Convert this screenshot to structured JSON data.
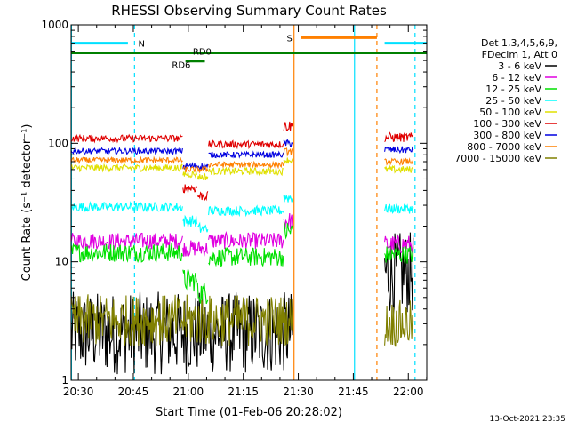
{
  "chart_data": {
    "type": "line",
    "title": "RHESSI Observing Summary Count Rates",
    "xlabel": "Start Time (01-Feb-06 20:28:02)",
    "ylabel_html": "Count Rate (s⁻¹ detector⁻¹)",
    "y_scale": "log",
    "ylim": [
      1,
      1000
    ],
    "xlim_minutes": [
      0,
      97
    ],
    "x_start_label": "20:28:02",
    "x_ticks": [
      {
        "label": "20:30",
        "t": 1.97
      },
      {
        "label": "20:45",
        "t": 16.97
      },
      {
        "label": "21:00",
        "t": 31.97
      },
      {
        "label": "21:15",
        "t": 46.97
      },
      {
        "label": "21:30",
        "t": 61.97
      },
      {
        "label": "21:45",
        "t": 76.97
      },
      {
        "label": "22:00",
        "t": 91.97
      }
    ],
    "y_ticks": [
      {
        "label": "1",
        "v": 1
      },
      {
        "label": "10",
        "v": 10
      },
      {
        "label": "100",
        "v": 100
      },
      {
        "label": "1000",
        "v": 1000
      }
    ],
    "legend_header": [
      "Det 1,3,4,5,6,9,",
      "FDecim 1, Att 0"
    ],
    "legend_position": "right",
    "series": [
      {
        "name": "3 - 6 keV",
        "color": "#000000",
        "segments": [
          {
            "t0": 0,
            "t1": 60.5,
            "level": 2.5,
            "noise": 0.35
          },
          {
            "t0": 85.5,
            "t1": 93.5,
            "level": 8.0,
            "noise": 0.35
          }
        ]
      },
      {
        "name": "6 - 12 keV",
        "color": "#e000e0",
        "segments": [
          {
            "t0": 0,
            "t1": 30.5,
            "level": 15,
            "noise": 0.07
          },
          {
            "t0": 30.5,
            "t1": 37.5,
            "level": 13,
            "noise": 0.07
          },
          {
            "t0": 37.5,
            "t1": 58,
            "level": 15,
            "noise": 0.07
          },
          {
            "t0": 58,
            "t1": 60.5,
            "level": 22,
            "noise": 0.08
          },
          {
            "t0": 85.5,
            "t1": 93.5,
            "level": 14,
            "noise": 0.08
          }
        ]
      },
      {
        "name": "12 - 25 keV",
        "color": "#00e000",
        "segments": [
          {
            "t0": 0,
            "t1": 30.5,
            "level": 12,
            "noise": 0.08
          },
          {
            "t0": 30.5,
            "t1": 34.5,
            "level": 7,
            "noise": 0.1
          },
          {
            "t0": 34.5,
            "t1": 37.5,
            "level": 5.5,
            "noise": 0.1
          },
          {
            "t0": 37.5,
            "t1": 58,
            "level": 11,
            "noise": 0.08
          },
          {
            "t0": 58,
            "t1": 60.5,
            "level": 18,
            "noise": 0.1
          },
          {
            "t0": 85.5,
            "t1": 93.5,
            "level": 11.5,
            "noise": 0.08
          }
        ]
      },
      {
        "name": "25 - 50 keV",
        "color": "#00ffff",
        "segments": [
          {
            "t0": 0,
            "t1": 30.5,
            "level": 29,
            "noise": 0.04
          },
          {
            "t0": 30.5,
            "t1": 34.5,
            "level": 22,
            "noise": 0.05
          },
          {
            "t0": 34.5,
            "t1": 37.5,
            "level": 19,
            "noise": 0.05
          },
          {
            "t0": 37.5,
            "t1": 58,
            "level": 27,
            "noise": 0.04
          },
          {
            "t0": 58,
            "t1": 60.5,
            "level": 35,
            "noise": 0.05
          },
          {
            "t0": 85.5,
            "t1": 93.5,
            "level": 28,
            "noise": 0.04
          }
        ]
      },
      {
        "name": "50 - 100 keV",
        "color": "#e0e000",
        "segments": [
          {
            "t0": 0,
            "t1": 30.5,
            "level": 62,
            "noise": 0.03
          },
          {
            "t0": 30.5,
            "t1": 34.5,
            "level": 55,
            "noise": 0.03
          },
          {
            "t0": 34.5,
            "t1": 37.5,
            "level": 52,
            "noise": 0.03
          },
          {
            "t0": 37.5,
            "t1": 58,
            "level": 58,
            "noise": 0.03
          },
          {
            "t0": 58,
            "t1": 60.5,
            "level": 72,
            "noise": 0.03
          },
          {
            "t0": 85.5,
            "t1": 93.5,
            "level": 60,
            "noise": 0.03
          }
        ]
      },
      {
        "name": "100 - 300 keV",
        "color": "#e00000",
        "segments": [
          {
            "t0": 0,
            "t1": 30.5,
            "level": 110,
            "noise": 0.03
          },
          {
            "t0": 30.5,
            "t1": 34.5,
            "level": 42,
            "noise": 0.04
          },
          {
            "t0": 34.5,
            "t1": 37.5,
            "level": 36,
            "noise": 0.04
          },
          {
            "t0": 37.5,
            "t1": 58,
            "level": 98,
            "noise": 0.03
          },
          {
            "t0": 58,
            "t1": 60.5,
            "level": 140,
            "noise": 0.05
          },
          {
            "t0": 85.5,
            "t1": 93.5,
            "level": 112,
            "noise": 0.04
          }
        ]
      },
      {
        "name": "300 - 800 keV",
        "color": "#0000e0",
        "segments": [
          {
            "t0": 0,
            "t1": 30.5,
            "level": 86,
            "noise": 0.025
          },
          {
            "t0": 30.5,
            "t1": 37.5,
            "level": 64,
            "noise": 0.03
          },
          {
            "t0": 37.5,
            "t1": 58,
            "level": 80,
            "noise": 0.025
          },
          {
            "t0": 58,
            "t1": 60.5,
            "level": 100,
            "noise": 0.03
          },
          {
            "t0": 85.5,
            "t1": 93.5,
            "level": 88,
            "noise": 0.03
          }
        ]
      },
      {
        "name": "800 - 7000 keV",
        "color": "#ff8000",
        "segments": [
          {
            "t0": 0,
            "t1": 30.5,
            "level": 72,
            "noise": 0.025
          },
          {
            "t0": 30.5,
            "t1": 37.5,
            "level": 60,
            "noise": 0.025
          },
          {
            "t0": 37.5,
            "t1": 58,
            "level": 66,
            "noise": 0.025
          },
          {
            "t0": 58,
            "t1": 60.5,
            "level": 85,
            "noise": 0.03
          },
          {
            "t0": 85.5,
            "t1": 93.5,
            "level": 70,
            "noise": 0.025
          }
        ]
      },
      {
        "name": "7000 - 15000 keV",
        "color": "#808000",
        "segments": [
          {
            "t0": 0,
            "t1": 60.5,
            "level": 3.2,
            "noise": 0.22
          },
          {
            "t0": 85.5,
            "t1": 93.5,
            "level": 3.0,
            "noise": 0.2
          }
        ]
      }
    ],
    "markers": [
      {
        "label": "N",
        "color": "#00e0ff",
        "y_value": 700,
        "t0": 0,
        "t1": 17.3,
        "line_t0": 0,
        "line_t1": 15.5,
        "label_t": 18.3,
        "label_y_value": 700
      },
      {
        "label": "",
        "color": "#00e0ff",
        "y_value": 700,
        "t0": 77.3,
        "t1": 97,
        "line_t0": 85.5,
        "line_t1": 97,
        "label_t": null,
        "label_y_value": null
      },
      {
        "label": "S",
        "color": "#ff8000",
        "y_value": 780,
        "t0": 60.8,
        "t1": 83.4,
        "line_t0": 62.6,
        "line_t1": 83.4,
        "label_t": 58.8,
        "label_y_value": 780
      },
      {
        "label": "RD6",
        "color": "#008000",
        "y_value": 495,
        "t0": 31.2,
        "t1": 36.5,
        "line_t0": 31.2,
        "line_t1": 36.5,
        "label_t": 27.5,
        "label_y_value": 465
      },
      {
        "label": "RD0",
        "color": "#008000",
        "y_value": 580,
        "t0": 0,
        "t1": 97,
        "line_t0": 0,
        "line_t1": 97,
        "label_t": 33.2,
        "label_y_value": 600
      }
    ],
    "vertical_lines": [
      {
        "t": 0.1,
        "color": "#00e0ff",
        "dash": false
      },
      {
        "t": 17.3,
        "color": "#00e0ff",
        "dash": true
      },
      {
        "t": 60.8,
        "color": "#ff8000",
        "dash": false
      },
      {
        "t": 77.3,
        "color": "#00e0ff",
        "dash": false
      },
      {
        "t": 83.4,
        "color": "#ff8000",
        "dash": true
      },
      {
        "t": 93.8,
        "color": "#00e0ff",
        "dash": true
      }
    ],
    "footer_timestamp": "13-Oct-2021 23:35",
    "background": "#ffffff",
    "axis_color": "#000000"
  }
}
